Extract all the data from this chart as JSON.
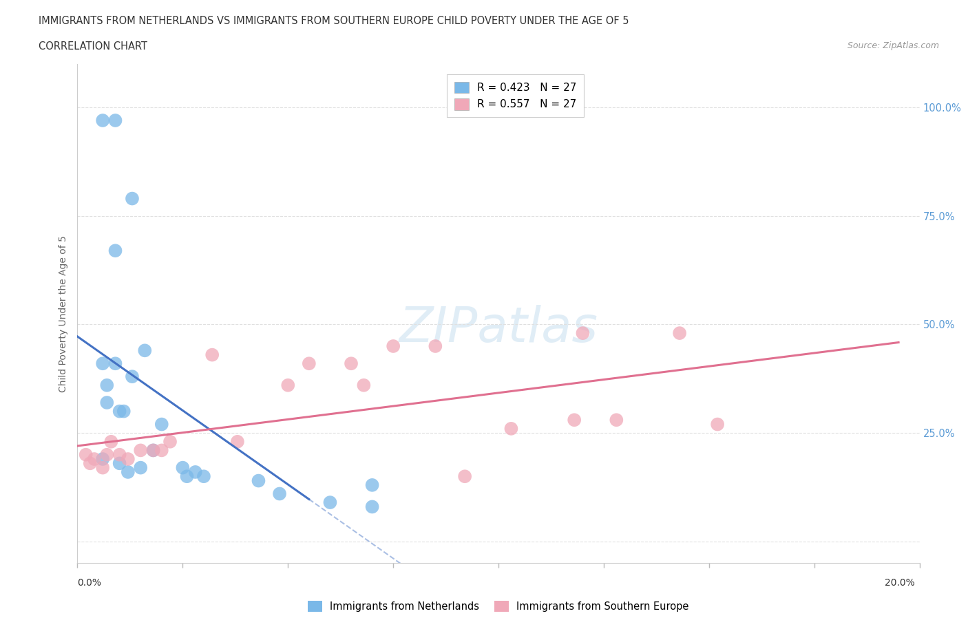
{
  "title_line1": "IMMIGRANTS FROM NETHERLANDS VS IMMIGRANTS FROM SOUTHERN EUROPE CHILD POVERTY UNDER THE AGE OF 5",
  "title_line2": "CORRELATION CHART",
  "source_text": "Source: ZipAtlas.com",
  "ylabel": "Child Poverty Under the Age of 5",
  "y_ticks": [
    0.0,
    0.25,
    0.5,
    0.75,
    1.0
  ],
  "y_tick_labels": [
    "",
    "25.0%",
    "50.0%",
    "75.0%",
    "100.0%"
  ],
  "x_range": [
    0.0,
    0.2
  ],
  "y_range": [
    -0.05,
    1.1
  ],
  "netherlands_color": "#7ab8e8",
  "southern_europe_color": "#f0a8b8",
  "netherlands_line_color": "#4472c4",
  "southern_europe_line_color": "#e07090",
  "nl_R": 0.423,
  "se_R": 0.557,
  "nl_N": 27,
  "se_N": 27,
  "watermark_text": "ZIPatlas",
  "nl_points": [
    [
      0.006,
      0.97
    ],
    [
      0.009,
      0.97
    ],
    [
      0.013,
      0.79
    ],
    [
      0.009,
      0.67
    ],
    [
      0.016,
      0.44
    ],
    [
      0.009,
      0.41
    ],
    [
      0.006,
      0.41
    ],
    [
      0.013,
      0.38
    ],
    [
      0.007,
      0.36
    ],
    [
      0.007,
      0.32
    ],
    [
      0.01,
      0.3
    ],
    [
      0.011,
      0.3
    ],
    [
      0.02,
      0.27
    ],
    [
      0.018,
      0.21
    ],
    [
      0.006,
      0.19
    ],
    [
      0.01,
      0.18
    ],
    [
      0.015,
      0.17
    ],
    [
      0.025,
      0.17
    ],
    [
      0.012,
      0.16
    ],
    [
      0.028,
      0.16
    ],
    [
      0.026,
      0.15
    ],
    [
      0.03,
      0.15
    ],
    [
      0.043,
      0.14
    ],
    [
      0.07,
      0.13
    ],
    [
      0.048,
      0.11
    ],
    [
      0.06,
      0.09
    ],
    [
      0.07,
      0.08
    ]
  ],
  "se_points": [
    [
      0.002,
      0.2
    ],
    [
      0.004,
      0.19
    ],
    [
      0.007,
      0.2
    ],
    [
      0.008,
      0.23
    ],
    [
      0.01,
      0.2
    ],
    [
      0.012,
      0.19
    ],
    [
      0.003,
      0.18
    ],
    [
      0.006,
      0.17
    ],
    [
      0.015,
      0.21
    ],
    [
      0.018,
      0.21
    ],
    [
      0.02,
      0.21
    ],
    [
      0.022,
      0.23
    ],
    [
      0.038,
      0.23
    ],
    [
      0.032,
      0.43
    ],
    [
      0.055,
      0.41
    ],
    [
      0.065,
      0.41
    ],
    [
      0.05,
      0.36
    ],
    [
      0.068,
      0.36
    ],
    [
      0.075,
      0.45
    ],
    [
      0.085,
      0.45
    ],
    [
      0.092,
      0.15
    ],
    [
      0.103,
      0.26
    ],
    [
      0.118,
      0.28
    ],
    [
      0.128,
      0.28
    ],
    [
      0.12,
      0.48
    ],
    [
      0.143,
      0.48
    ],
    [
      0.152,
      0.27
    ]
  ]
}
